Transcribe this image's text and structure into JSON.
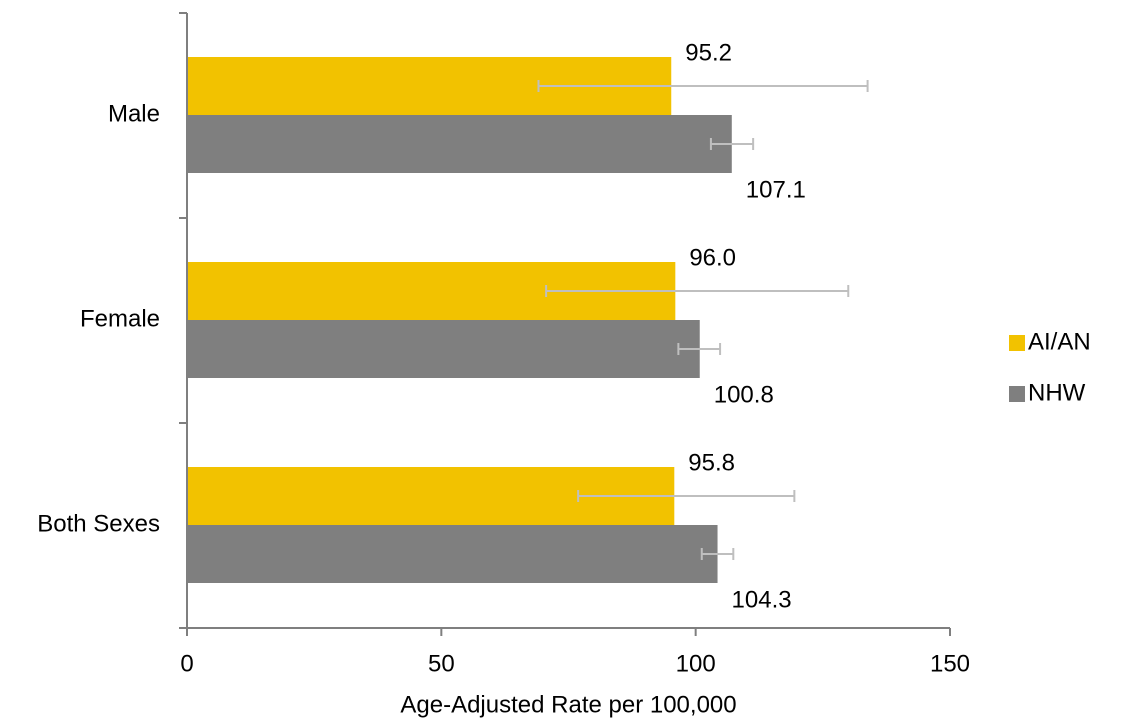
{
  "chart_data": {
    "type": "bar",
    "orientation": "horizontal",
    "categories": [
      "Male",
      "Female",
      "Both Sexes"
    ],
    "series": [
      {
        "name": "AI/AN",
        "color": "#F2C200",
        "values": [
          95.2,
          96.0,
          95.8
        ],
        "labels": [
          "95.2",
          "96.0",
          "95.8"
        ],
        "error_low": [
          69.1,
          70.6,
          76.9
        ],
        "error_high": [
          133.8,
          130.0,
          119.4
        ]
      },
      {
        "name": "NHW",
        "color": "#7F7F7F",
        "values": [
          107.1,
          100.8,
          104.3
        ],
        "labels": [
          "107.1",
          "100.8",
          "104.3"
        ],
        "error_low": [
          103.0,
          96.6,
          101.2
        ],
        "error_high": [
          111.3,
          104.8,
          107.4
        ]
      }
    ],
    "xlabel": "Age-Adjusted Rate per 100,000",
    "ylabel": "",
    "xlim": [
      0,
      150
    ],
    "xticks": [
      "0",
      "50",
      "100",
      "150"
    ],
    "grid": false,
    "legend": "right",
    "error_bar_color": "#BFBFBF",
    "axis_color": "#7F7F7F"
  }
}
